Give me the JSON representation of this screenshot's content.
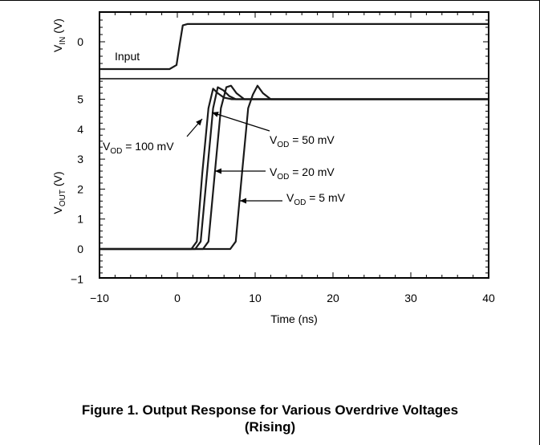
{
  "chart_data": {
    "type": "line",
    "xlabel": "Time (ns)",
    "xlim": [
      -10,
      40
    ],
    "x_ticks": [
      "−10",
      "0",
      "10",
      "20",
      "30",
      "40"
    ],
    "panels": [
      {
        "ylabel_main": "V",
        "ylabel_sub": "IN",
        "ylabel_unit": " (V)",
        "y_ticks": [
          "0"
        ],
        "series": [
          {
            "name": "Input",
            "x": [
              -10,
              -1,
              -0.1,
              0.3,
              0.7,
              1.3,
              40
            ],
            "y": [
              -1,
              -1,
              -0.85,
              -0.1,
              0.6,
              0.65,
              0.65
            ]
          }
        ]
      },
      {
        "ylabel_main": "V",
        "ylabel_sub": "OUT",
        "ylabel_unit": " (V)",
        "ylim": [
          -1,
          6.35
        ],
        "y_ticks": [
          "−1",
          "0",
          "1",
          "2",
          "3",
          "4",
          "5"
        ],
        "series": [
          {
            "name": "V_OD = 100 mV",
            "x": [
              -10,
              1.8,
              2.5,
              3.2,
              4.0,
              4.6,
              5.2,
              6.0,
              7.0,
              8.5,
              40
            ],
            "y": [
              0,
              0,
              0.25,
              2.5,
              4.7,
              5.35,
              5.2,
              5.05,
              5.0,
              5.0,
              5.0
            ]
          },
          {
            "name": "V_OD = 50 mV",
            "x": [
              -10,
              2.3,
              3.0,
              3.8,
              4.6,
              5.2,
              5.9,
              6.7,
              7.5,
              9.5,
              40
            ],
            "y": [
              0,
              0,
              0.25,
              2.5,
              4.7,
              5.4,
              5.3,
              5.1,
              5.0,
              5.0,
              5.0
            ]
          },
          {
            "name": "V_OD = 20 mV",
            "x": [
              -10,
              3.3,
              4.0,
              4.8,
              5.6,
              6.3,
              6.9,
              7.6,
              8.6,
              10.5,
              40
            ],
            "y": [
              0,
              0,
              0.25,
              2.5,
              4.7,
              5.4,
              5.45,
              5.2,
              5.0,
              5.0,
              5.0
            ]
          },
          {
            "name": "V_OD = 5 mV",
            "x": [
              -10,
              6.8,
              7.5,
              8.3,
              9.1,
              9.7,
              10.3,
              11.0,
              12.0,
              13.5,
              40
            ],
            "y": [
              0,
              0,
              0.25,
              2.5,
              4.7,
              5.15,
              5.45,
              5.2,
              5.0,
              5.0,
              5.0
            ]
          }
        ]
      }
    ],
    "annotations": [
      {
        "main": "Input"
      },
      {
        "main": "V",
        "sub": "OD",
        "rest": " = 100 mV"
      },
      {
        "main": "V",
        "sub": "OD",
        "rest": " = 50 mV"
      },
      {
        "main": "V",
        "sub": "OD",
        "rest": " = 20 mV"
      },
      {
        "main": "V",
        "sub": "OD",
        "rest": " = 5 mV"
      }
    ],
    "grid": true,
    "line_color": "#1a1a1a"
  },
  "caption": {
    "line1": "Figure 1. Output Response for Various Overdrive Voltages",
    "line2": "(Rising)"
  }
}
